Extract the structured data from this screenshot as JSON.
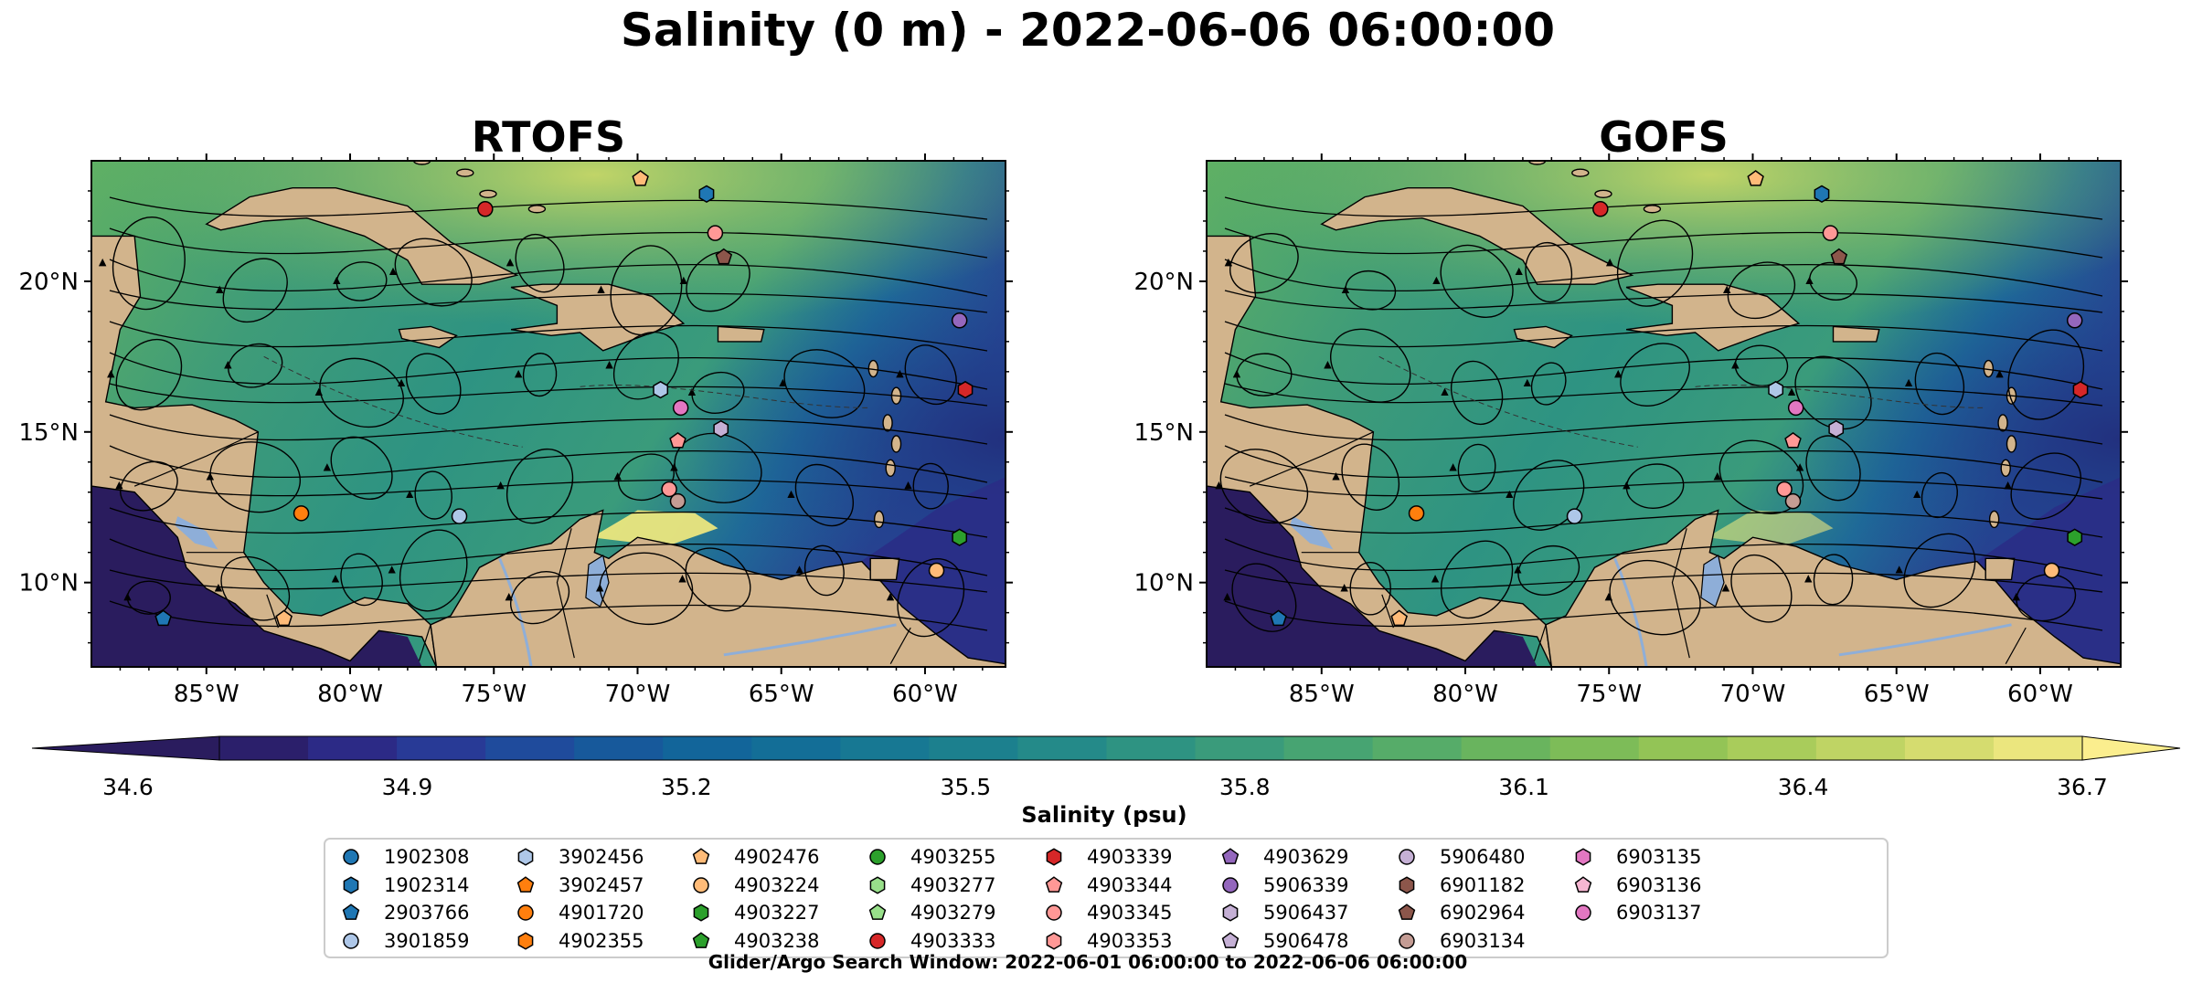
{
  "figure": {
    "title": "Salinity (0 m) - 2022-06-06 06:00:00",
    "search_window": "Glider/Argo Search Window: 2022-06-01 06:00:00 to 2022-06-06 06:00:00"
  },
  "panels": [
    {
      "title": "RTOFS"
    },
    {
      "title": "GOFS"
    }
  ],
  "axes": {
    "lon_ticks": [
      "85°W",
      "80°W",
      "75°W",
      "70°W",
      "65°W",
      "60°W"
    ],
    "lat_ticks": [
      "20°N",
      "15°N",
      "10°N"
    ]
  },
  "colorbar": {
    "label": "Salinity (psu)",
    "min": 34.6,
    "max": 36.7,
    "ticks": [
      "34.6",
      "34.9",
      "35.2",
      "35.5",
      "35.8",
      "36.1",
      "36.4",
      "36.7"
    ],
    "colors": [
      "#2b1f6b",
      "#2c2a86",
      "#283a96",
      "#1f4b9c",
      "#17599b",
      "#12659a",
      "#136e97",
      "#177893",
      "#1c808e",
      "#248a89",
      "#2e9382",
      "#3a9b7b",
      "#47a472",
      "#56ac69",
      "#69b45e",
      "#7dbc58",
      "#93c456",
      "#a9cc5b",
      "#bfd464",
      "#d5dc6f",
      "#ebe67e"
    ],
    "over_color": "#fbee8e",
    "under_color": "#2a1c5e"
  },
  "colors": {
    "land": "#d2b48c",
    "lakes": "#8eaed8",
    "low_salinity": "#2a1c5e"
  },
  "legend": {
    "floats": [
      {
        "id": "1902308",
        "shape": "circle",
        "color": "#1f77b4"
      },
      {
        "id": "1902314",
        "shape": "hexagon",
        "color": "#1f77b4"
      },
      {
        "id": "2903766",
        "shape": "pentagon",
        "color": "#1f77b4"
      },
      {
        "id": "3901859",
        "shape": "circle",
        "color": "#aec7e8"
      },
      {
        "id": "3902456",
        "shape": "hexagon",
        "color": "#aec7e8"
      },
      {
        "id": "3902457",
        "shape": "pentagon",
        "color": "#ff7f0e"
      },
      {
        "id": "4901720",
        "shape": "circle",
        "color": "#ff7f0e"
      },
      {
        "id": "4902355",
        "shape": "hexagon",
        "color": "#ff7f0e"
      },
      {
        "id": "4902476",
        "shape": "pentagon",
        "color": "#ffbb78"
      },
      {
        "id": "4903224",
        "shape": "circle",
        "color": "#ffbb78"
      },
      {
        "id": "4903227",
        "shape": "hexagon",
        "color": "#2ca02c"
      },
      {
        "id": "4903238",
        "shape": "pentagon",
        "color": "#2ca02c"
      },
      {
        "id": "4903255",
        "shape": "circle",
        "color": "#2ca02c"
      },
      {
        "id": "4903277",
        "shape": "hexagon",
        "color": "#98df8a"
      },
      {
        "id": "4903279",
        "shape": "pentagon",
        "color": "#98df8a"
      },
      {
        "id": "4903333",
        "shape": "circle",
        "color": "#d62728"
      },
      {
        "id": "4903339",
        "shape": "hexagon",
        "color": "#d62728"
      },
      {
        "id": "4903344",
        "shape": "pentagon",
        "color": "#ff9896"
      },
      {
        "id": "4903345",
        "shape": "circle",
        "color": "#ff9896"
      },
      {
        "id": "4903353",
        "shape": "hexagon",
        "color": "#ff9896"
      },
      {
        "id": "4903629",
        "shape": "pentagon",
        "color": "#9467bd"
      },
      {
        "id": "5906339",
        "shape": "circle",
        "color": "#9467bd"
      },
      {
        "id": "5906437",
        "shape": "hexagon",
        "color": "#c5b0d5"
      },
      {
        "id": "5906478",
        "shape": "pentagon",
        "color": "#c5b0d5"
      },
      {
        "id": "5906480",
        "shape": "circle",
        "color": "#c5b0d5"
      },
      {
        "id": "6901182",
        "shape": "hexagon",
        "color": "#8c564b"
      },
      {
        "id": "6902964",
        "shape": "pentagon",
        "color": "#8c564b"
      },
      {
        "id": "6903134",
        "shape": "circle",
        "color": "#c49c94"
      },
      {
        "id": "6903135",
        "shape": "hexagon",
        "color": "#e377c2"
      },
      {
        "id": "6903136",
        "shape": "pentagon",
        "color": "#f7b6d2"
      },
      {
        "id": "6903137",
        "shape": "circle",
        "color": "#e377c2"
      }
    ]
  },
  "float_positions": [
    {
      "id": "2903766",
      "lon": -86.5,
      "lat": 8.8
    },
    {
      "id": "4902476",
      "lon": -82.3,
      "lat": 8.8
    },
    {
      "id": "4901720",
      "lon": -81.7,
      "lat": 12.3
    },
    {
      "id": "3901859",
      "lon": -76.2,
      "lat": 12.2
    },
    {
      "id": "4903333",
      "lon": -75.3,
      "lat": 22.4
    },
    {
      "id": "4902476",
      "lon": -69.9,
      "lat": 23.4
    },
    {
      "id": "1902314",
      "lon": -67.6,
      "lat": 22.9
    },
    {
      "id": "4903345",
      "lon": -67.3,
      "lat": 21.6
    },
    {
      "id": "6902964",
      "lon": -67.0,
      "lat": 20.8
    },
    {
      "id": "3902456",
      "lon": -69.2,
      "lat": 16.4
    },
    {
      "id": "6903137",
      "lon": -68.5,
      "lat": 15.8
    },
    {
      "id": "4903344",
      "lon": -68.6,
      "lat": 14.7
    },
    {
      "id": "5906437",
      "lon": -67.1,
      "lat": 15.1
    },
    {
      "id": "4903345",
      "lon": -68.9,
      "lat": 13.1
    },
    {
      "id": "6903134",
      "lon": -68.6,
      "lat": 12.7
    },
    {
      "id": "5906339",
      "lon": -58.8,
      "lat": 18.7
    },
    {
      "id": "4903339",
      "lon": -58.6,
      "lat": 16.4
    },
    {
      "id": "4903227",
      "lon": -58.8,
      "lat": 11.5
    },
    {
      "id": "4903224",
      "lon": -59.6,
      "lat": 10.4
    }
  ]
}
